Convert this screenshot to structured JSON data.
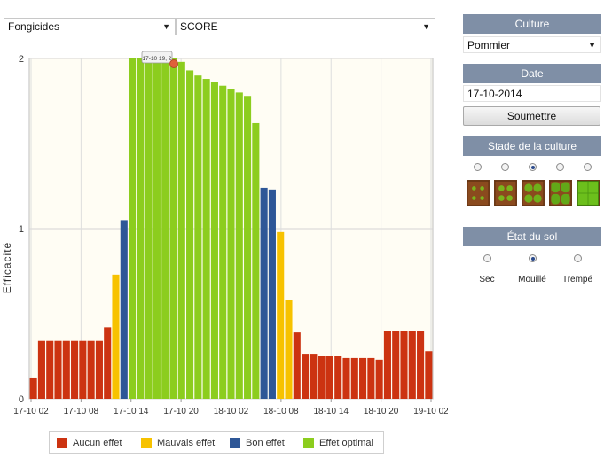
{
  "toolbar": {
    "category_select": "Fongicides",
    "metric_select": "SCORE"
  },
  "sidebar": {
    "culture": {
      "header": "Culture",
      "value": "Pommier"
    },
    "date": {
      "header": "Date",
      "value": "17-10-2014",
      "submit": "Soumettre"
    },
    "stage": {
      "header": "Stade de la culture",
      "selected_index": 2,
      "count": 5
    },
    "soil": {
      "header": "État du sol",
      "options": [
        "Sec",
        "Mouillé",
        "Trempé"
      ],
      "selected_index": 1
    }
  },
  "tooltip": {
    "text": "17-10 19, 2"
  },
  "colors": {
    "aucun": "#cc3311",
    "mauvais": "#f7c200",
    "bon": "#2e5797",
    "optimal": "#8ccd1e"
  },
  "chart_data": {
    "type": "bar",
    "ylabel": "Efficacité",
    "ylim": [
      0,
      2
    ],
    "yticks": [
      "0",
      "1",
      "2"
    ],
    "xticks": [
      "17-10 02",
      "17-10 08",
      "17-10 14",
      "17-10 20",
      "18-10 02",
      "18-10 08",
      "18-10 14",
      "18-10 20",
      "19-10 02"
    ],
    "legend": [
      {
        "key": "aucun",
        "label": "Aucun effet"
      },
      {
        "key": "mauvais",
        "label": "Mauvais effet"
      },
      {
        "key": "bon",
        "label": "Bon effet"
      },
      {
        "key": "optimal",
        "label": "Effet optimal"
      }
    ],
    "values": [
      0.12,
      0.34,
      0.34,
      0.34,
      0.34,
      0.34,
      0.34,
      0.34,
      0.34,
      0.42,
      0.73,
      1.05,
      2.0,
      2.0,
      2.0,
      2.0,
      2.0,
      2.0,
      1.98,
      1.93,
      1.9,
      1.88,
      1.86,
      1.84,
      1.82,
      1.8,
      1.78,
      1.62,
      1.24,
      1.23,
      0.98,
      0.58,
      0.39,
      0.26,
      0.26,
      0.25,
      0.25,
      0.25,
      0.24,
      0.24,
      0.24,
      0.24,
      0.23,
      0.4,
      0.4,
      0.4,
      0.4,
      0.4,
      0.28
    ],
    "classes": [
      "aucun",
      "aucun",
      "aucun",
      "aucun",
      "aucun",
      "aucun",
      "aucun",
      "aucun",
      "aucun",
      "aucun",
      "mauvais",
      "bon",
      "optimal",
      "optimal",
      "optimal",
      "optimal",
      "optimal",
      "optimal",
      "optimal",
      "optimal",
      "optimal",
      "optimal",
      "optimal",
      "optimal",
      "optimal",
      "optimal",
      "optimal",
      "optimal",
      "bon",
      "bon",
      "mauvais",
      "mauvais",
      "aucun",
      "aucun",
      "aucun",
      "aucun",
      "aucun",
      "aucun",
      "aucun",
      "aucun",
      "aucun",
      "aucun",
      "aucun",
      "aucun",
      "aucun",
      "aucun",
      "aucun",
      "aucun",
      "aucun"
    ]
  }
}
